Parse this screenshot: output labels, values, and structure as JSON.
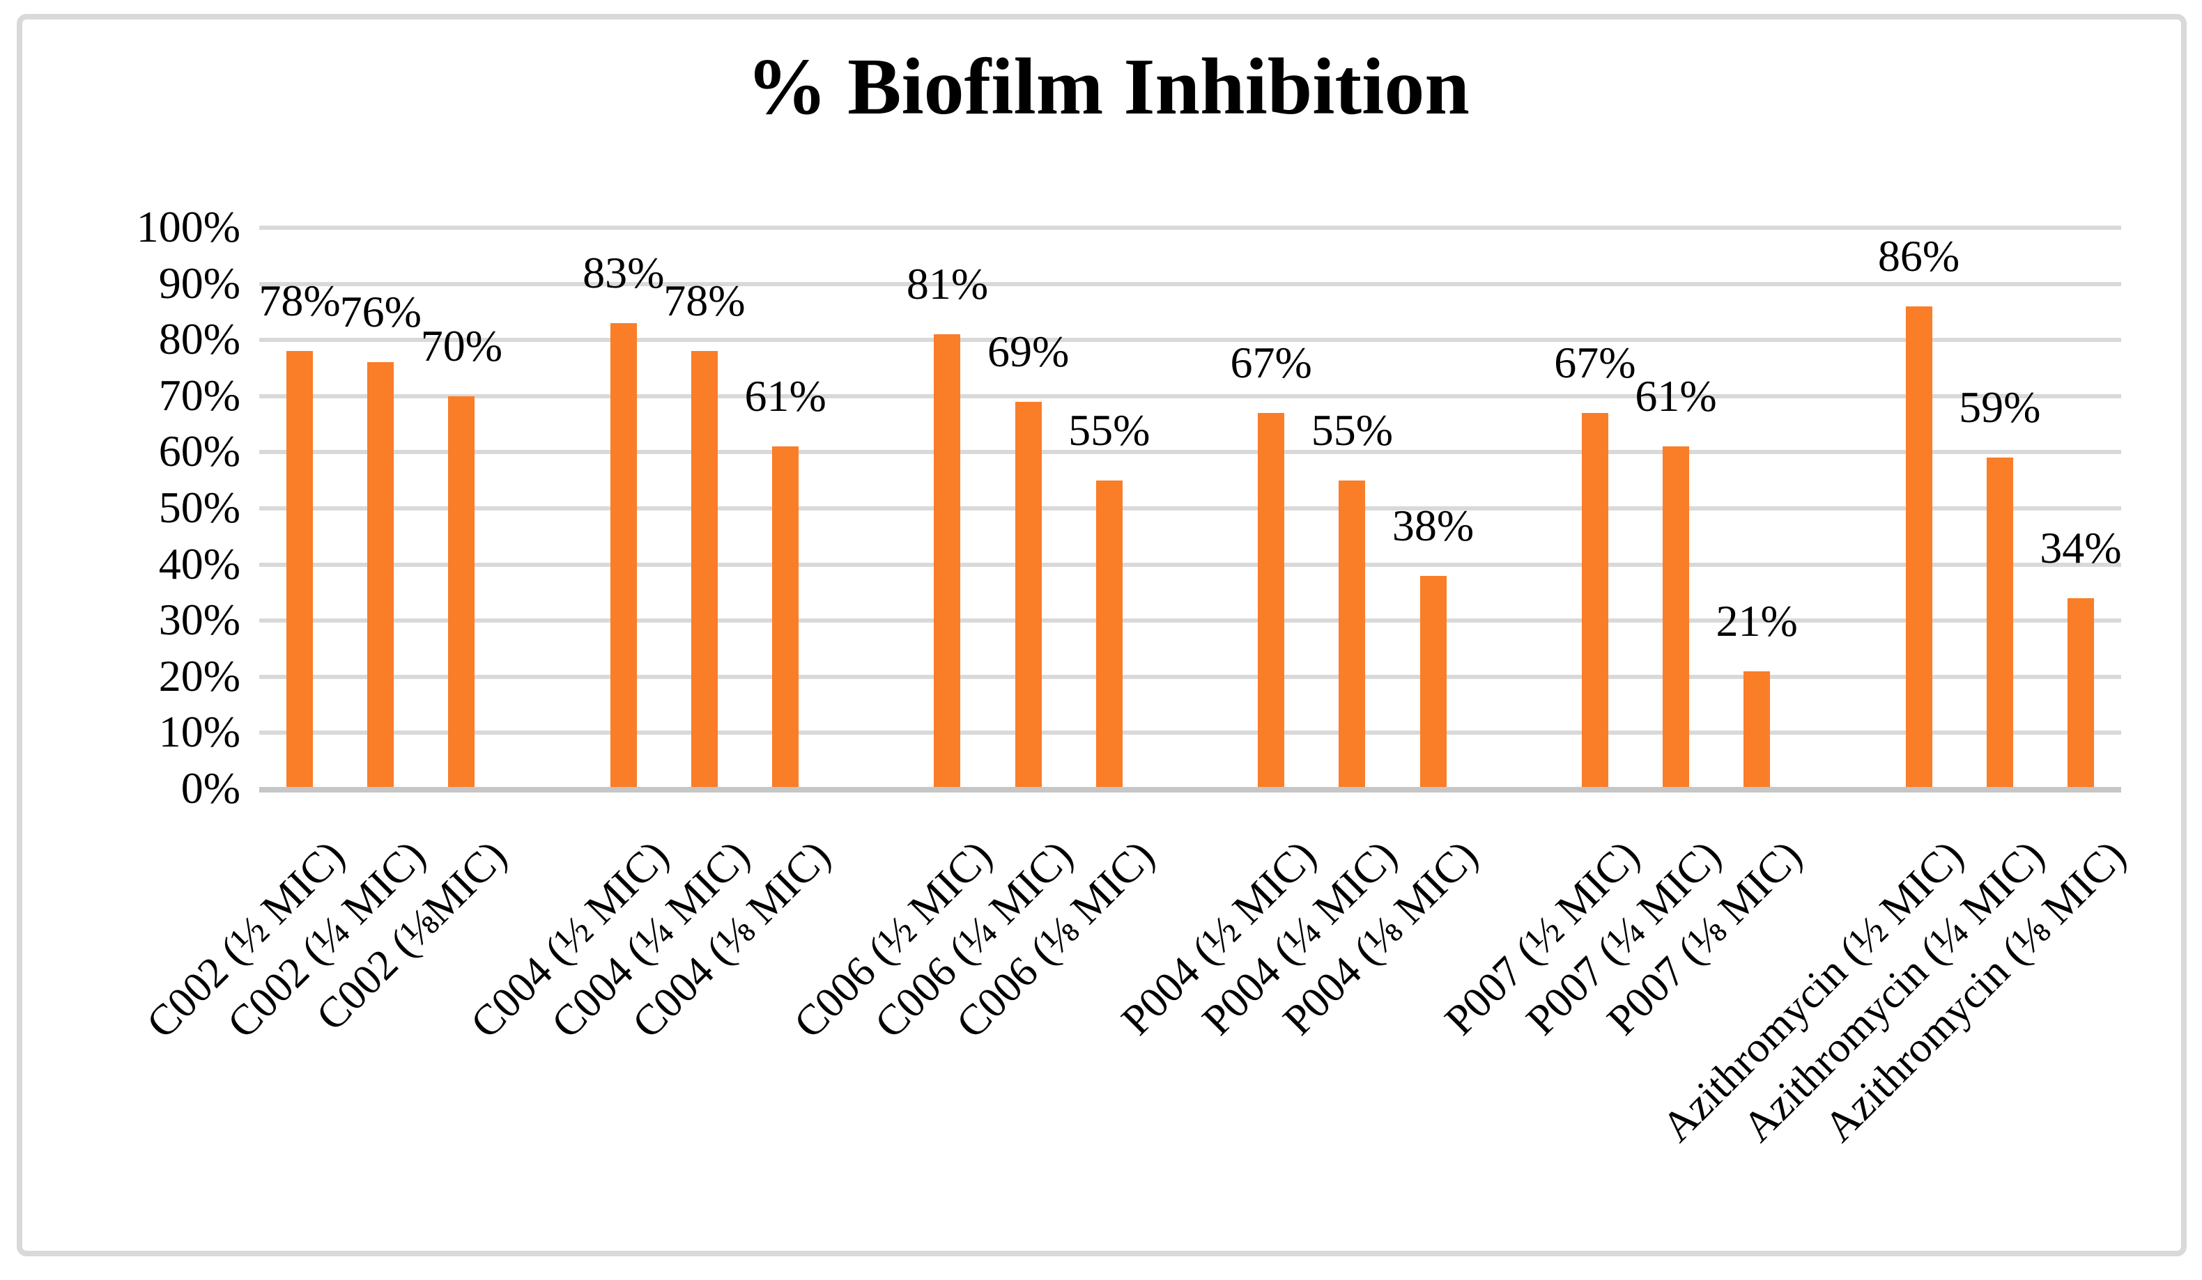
{
  "title": "% Biofilm Inhibition",
  "chart_data": {
    "type": "bar",
    "title": "% Biofilm Inhibition",
    "xlabel": "",
    "ylabel": "",
    "ylim": [
      0,
      100
    ],
    "y_tick_step": 10,
    "y_tick_suffix": "%",
    "grid": true,
    "legend": false,
    "bar_color": "#FA7D27",
    "gridline_color": "#D9D9D9",
    "axis_line_color": "#C6C6C6",
    "text_color": "#000000",
    "frame_color": "#D9D9D9",
    "groups": [
      {
        "name": "C002",
        "bars": [
          {
            "category": "C002 (½ MIC)",
            "value": 78,
            "data_label": "78%"
          },
          {
            "category": "C002 (¼ MIC)",
            "value": 76,
            "data_label": "76%"
          },
          {
            "category": "C002 (⅛MIC)",
            "value": 70,
            "data_label": "70%"
          }
        ]
      },
      {
        "name": "C004",
        "bars": [
          {
            "category": "C004 (½ MIC)",
            "value": 83,
            "data_label": "83%"
          },
          {
            "category": "C004 (¼ MIC)",
            "value": 78,
            "data_label": "78%"
          },
          {
            "category": "C004 (⅛ MIC)",
            "value": 61,
            "data_label": "61%"
          }
        ]
      },
      {
        "name": "C006",
        "bars": [
          {
            "category": "C006 (½ MIC)",
            "value": 81,
            "data_label": "81%"
          },
          {
            "category": "C006 (¼ MIC)",
            "value": 69,
            "data_label": "69%"
          },
          {
            "category": "C006 (⅛ MIC)",
            "value": 55,
            "data_label": "55%"
          }
        ]
      },
      {
        "name": "P004",
        "bars": [
          {
            "category": "P004 (½ MIC)",
            "value": 67,
            "data_label": "67%"
          },
          {
            "category": "P004 (¼ MIC)",
            "value": 55,
            "data_label": "55%"
          },
          {
            "category": "P004 (⅛ MIC)",
            "value": 38,
            "data_label": "38%"
          }
        ]
      },
      {
        "name": "P007",
        "bars": [
          {
            "category": "P007 (½ MIC)",
            "value": 67,
            "data_label": "67%"
          },
          {
            "category": "P007 (¼ MIC)",
            "value": 61,
            "data_label": "61%"
          },
          {
            "category": "P007 (⅛ MIC)",
            "value": 21,
            "data_label": "21%"
          }
        ]
      },
      {
        "name": "Azithromycin",
        "bars": [
          {
            "category": "Azithromycin (½ MIC)",
            "value": 86,
            "data_label": "86%"
          },
          {
            "category": "Azithromycin (¼ MIC)",
            "value": 59,
            "data_label": "59%"
          },
          {
            "category": "Azithromycin (⅛ MIC)",
            "value": 34,
            "data_label": "34%"
          }
        ]
      }
    ]
  }
}
